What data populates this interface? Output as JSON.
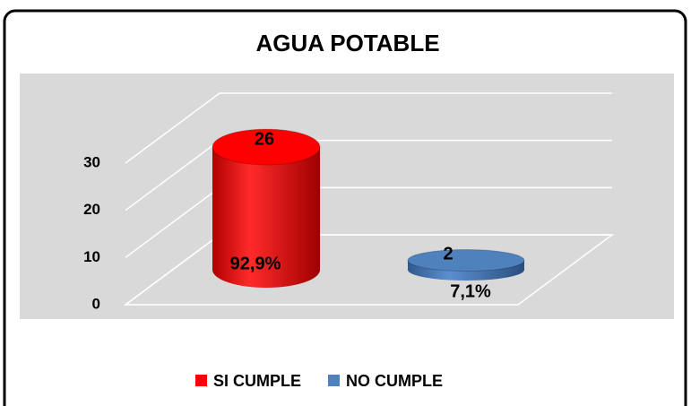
{
  "chart_data": {
    "type": "bar3d",
    "title": "AGUA POTABLE",
    "categories": [
      "SI CUMPLE",
      "NO CUMPLE"
    ],
    "series": [
      {
        "name": "SI CUMPLE",
        "color": "#ff0000"
      },
      {
        "name": "NO CUMPLE",
        "color": "#4f81bd"
      }
    ],
    "values": [
      26,
      2
    ],
    "percentages": [
      92.9,
      7.1
    ],
    "percentage_labels": [
      "92,9%",
      "7,1%"
    ],
    "ylim": [
      0,
      30
    ],
    "yticks": [
      0,
      10,
      20,
      30
    ],
    "grid": true,
    "legend": "bottom"
  }
}
